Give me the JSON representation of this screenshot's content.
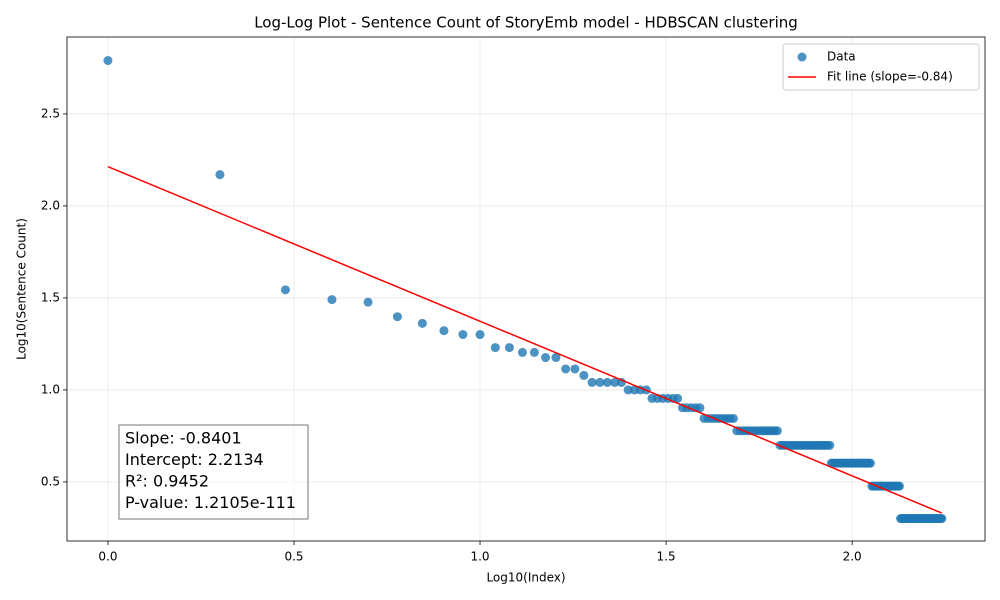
{
  "chart_data": {
    "type": "scatter",
    "title": "Log-Log Plot - Sentence Count of StoryEmb model - HDBSCAN clustering",
    "xlabel": "Log10(Index)",
    "ylabel": "Log10(Sentence Count)",
    "xlim": [
      -0.11,
      2.357
    ],
    "ylim": [
      0.179,
      2.918
    ],
    "xticks": [
      {
        "value": 0,
        "label": "0.0"
      },
      {
        "value": 0.5,
        "label": "0.5"
      },
      {
        "value": 1,
        "label": "1.0"
      },
      {
        "value": 1.5,
        "label": "1.5"
      },
      {
        "value": 2,
        "label": "2.0"
      }
    ],
    "yticks": [
      {
        "value": 0.5,
        "label": "0.5"
      },
      {
        "value": 1,
        "label": "1.0"
      },
      {
        "value": 1.5,
        "label": "1.5"
      },
      {
        "value": 2,
        "label": "2.0"
      },
      {
        "value": 2.5,
        "label": "2.5"
      }
    ],
    "grid": true,
    "legend": "upper right",
    "series": [
      {
        "name": "Data",
        "type": "scatter",
        "color": "#1f77b4",
        "x": [
          0,
          0.301,
          0.477,
          0.602,
          0.699,
          0.778,
          0.845,
          0.903,
          0.954,
          1,
          1.041,
          1.079,
          1.114,
          1.146,
          1.176,
          1.204,
          1.23,
          1.255,
          1.279,
          1.301,
          1.322,
          1.342,
          1.362,
          1.38,
          1.398,
          1.415,
          1.431,
          1.447,
          1.462,
          1.477,
          1.491,
          1.505,
          1.519,
          1.531,
          1.544,
          1.556,
          1.568,
          1.58,
          1.591,
          1.602,
          1.613,
          1.623,
          1.633,
          1.643,
          1.653,
          1.663,
          1.672,
          1.681,
          1.69,
          1.699,
          1.708,
          1.716,
          1.724,
          1.732,
          1.74,
          1.748,
          1.756,
          1.763,
          1.771,
          1.778,
          1.785,
          1.792,
          1.799,
          1.806,
          1.813,
          1.82,
          1.826,
          1.833,
          1.839,
          1.845,
          1.851,
          1.857,
          1.863,
          1.869,
          1.875,
          1.881,
          1.886,
          1.892,
          1.898,
          1.903,
          1.908,
          1.914,
          1.919,
          1.924,
          1.929,
          1.934,
          1.94,
          1.944,
          1.949,
          1.954,
          1.959,
          1.964,
          1.968,
          1.973,
          1.978,
          1.982,
          1.987,
          1.991,
          1.996,
          2,
          2.004,
          2.009,
          2.013,
          2.017,
          2.021,
          2.025,
          2.029,
          2.033,
          2.037,
          2.041,
          2.045,
          2.049,
          2.053,
          2.057,
          2.061,
          2.064,
          2.068,
          2.072,
          2.076,
          2.079,
          2.083,
          2.086,
          2.09,
          2.093,
          2.097,
          2.1,
          2.104,
          2.107,
          2.111,
          2.114,
          2.117,
          2.121,
          2.124,
          2.127,
          2.13,
          2.134,
          2.137,
          2.14,
          2.143,
          2.146,
          2.149,
          2.152,
          2.155,
          2.158,
          2.161,
          2.164,
          2.167,
          2.17,
          2.173,
          2.176,
          2.179,
          2.182,
          2.185,
          2.188,
          2.19,
          2.193,
          2.196,
          2.199,
          2.201,
          2.204,
          2.207,
          2.21,
          2.212,
          2.215,
          2.217,
          2.22,
          2.223,
          2.225,
          2.228,
          2.23,
          2.233,
          2.236,
          2.238,
          2.241
        ],
        "values": [
          2.79,
          2.17,
          1.544,
          1.491,
          1.477,
          1.398,
          1.362,
          1.322,
          1.301,
          1.301,
          1.23,
          1.23,
          1.204,
          1.204,
          1.176,
          1.176,
          1.114,
          1.114,
          1.079,
          1.041,
          1.041,
          1.041,
          1.041,
          1.041,
          1,
          1,
          1,
          1,
          0.954,
          0.954,
          0.954,
          0.954,
          0.954,
          0.954,
          0.903,
          0.903,
          0.903,
          0.903,
          0.903,
          0.845,
          0.845,
          0.845,
          0.845,
          0.845,
          0.845,
          0.845,
          0.845,
          0.845,
          0.778,
          0.778,
          0.778,
          0.778,
          0.778,
          0.778,
          0.778,
          0.778,
          0.778,
          0.778,
          0.778,
          0.778,
          0.778,
          0.778,
          0.778,
          0.699,
          0.699,
          0.699,
          0.699,
          0.699,
          0.699,
          0.699,
          0.699,
          0.699,
          0.699,
          0.699,
          0.699,
          0.699,
          0.699,
          0.699,
          0.699,
          0.699,
          0.699,
          0.699,
          0.699,
          0.699,
          0.699,
          0.699,
          0.699,
          0.602,
          0.602,
          0.602,
          0.602,
          0.602,
          0.602,
          0.602,
          0.602,
          0.602,
          0.602,
          0.602,
          0.602,
          0.602,
          0.602,
          0.602,
          0.602,
          0.602,
          0.602,
          0.602,
          0.602,
          0.602,
          0.602,
          0.602,
          0.602,
          0.602,
          0.477,
          0.477,
          0.477,
          0.477,
          0.477,
          0.477,
          0.477,
          0.477,
          0.477,
          0.477,
          0.477,
          0.477,
          0.477,
          0.477,
          0.477,
          0.477,
          0.477,
          0.477,
          0.477,
          0.477,
          0.477,
          0.477,
          0.301,
          0.301,
          0.301,
          0.301,
          0.301,
          0.301,
          0.301,
          0.301,
          0.301,
          0.301,
          0.301,
          0.301,
          0.301,
          0.301,
          0.301,
          0.301,
          0.301,
          0.301,
          0.301,
          0.301,
          0.301,
          0.301,
          0.301,
          0.301,
          0.301,
          0.301,
          0.301,
          0.301,
          0.301,
          0.301,
          0.301,
          0.301,
          0.301,
          0.301,
          0.301,
          0.301,
          0.301,
          0.301,
          0.301,
          0.301
        ]
      },
      {
        "name": "Fit line (slope=-0.84)",
        "type": "line",
        "color": "#ff0000",
        "x": [
          0,
          2.241
        ],
        "values": [
          2.2134,
          0.3307
        ]
      }
    ],
    "annotation": [
      "Slope: -0.8401",
      "Intercept: 2.2134",
      "R²: 0.9452",
      "P-value: 1.2105e-111"
    ]
  }
}
